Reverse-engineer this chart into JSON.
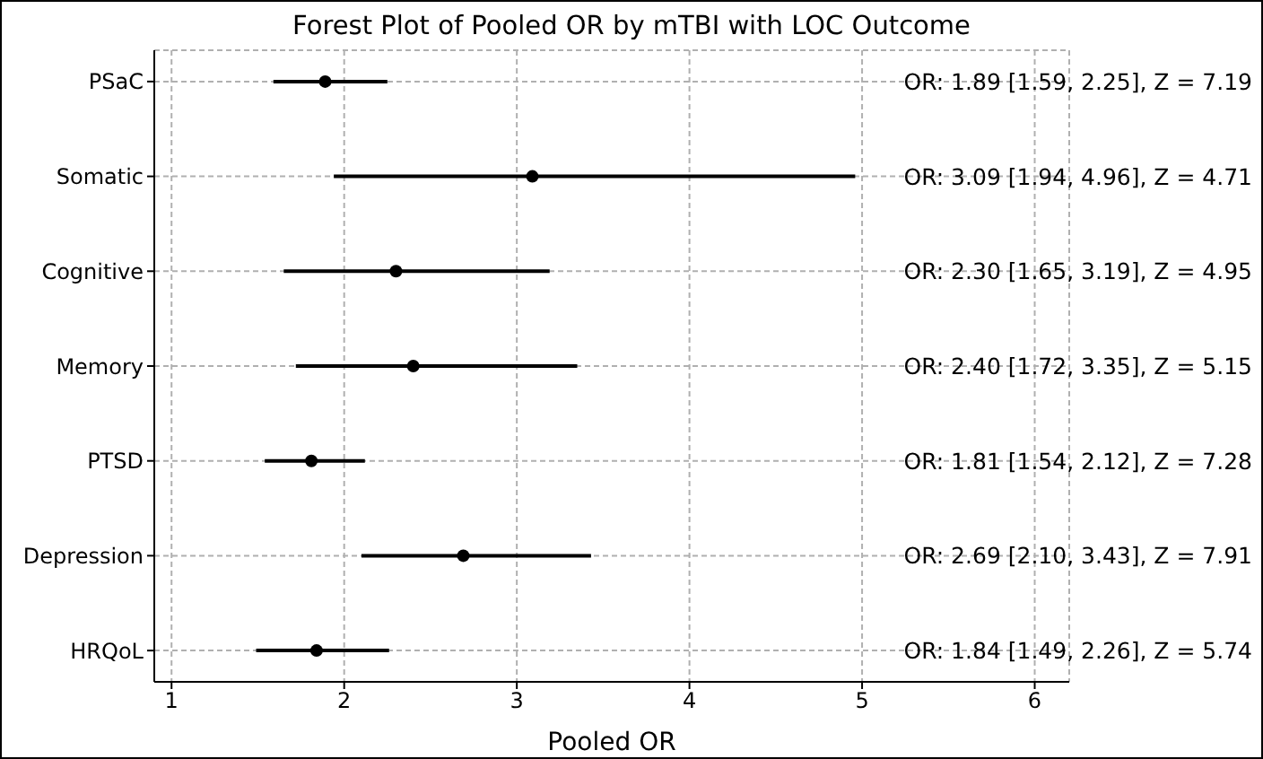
{
  "chart_data": {
    "type": "scatter",
    "title": "Forest Plot of Pooled OR by mTBI with LOC Outcome",
    "xlabel": "Pooled OR",
    "orientation": "horizontal",
    "categories": [
      "PSaC",
      "Somatic",
      "Cognitive",
      "Memory",
      "PTSD",
      "Depression",
      "HRQoL"
    ],
    "series": [
      {
        "color": "#000000",
        "values": [
          1.89,
          3.09,
          2.3,
          2.4,
          1.81,
          2.69,
          1.84
        ],
        "errors": [
          [
            1.59,
            2.25
          ],
          [
            1.94,
            4.96
          ],
          [
            1.65,
            3.19
          ],
          [
            1.72,
            3.35
          ],
          [
            1.54,
            2.12
          ],
          [
            2.1,
            3.43
          ],
          [
            1.49,
            2.26
          ]
        ]
      }
    ],
    "xlim": [
      0.9,
      6.2
    ],
    "xticks": [
      1,
      2,
      3,
      4,
      5,
      6
    ],
    "grid": true,
    "marker": "circle",
    "annotations": [
      "OR: 1.89 [1.59, 2.25], Z = 7.19",
      "OR: 3.09 [1.94, 4.96], Z = 4.71",
      "OR: 2.30 [1.65, 3.19], Z = 4.95",
      "OR: 2.40 [1.72, 3.35], Z = 5.15",
      "OR: 1.81 [1.54, 2.12], Z = 7.28",
      "OR: 2.69 [2.10, 3.43], Z = 7.91",
      "OR: 1.84 [1.49, 2.26], Z = 5.74"
    ]
  }
}
